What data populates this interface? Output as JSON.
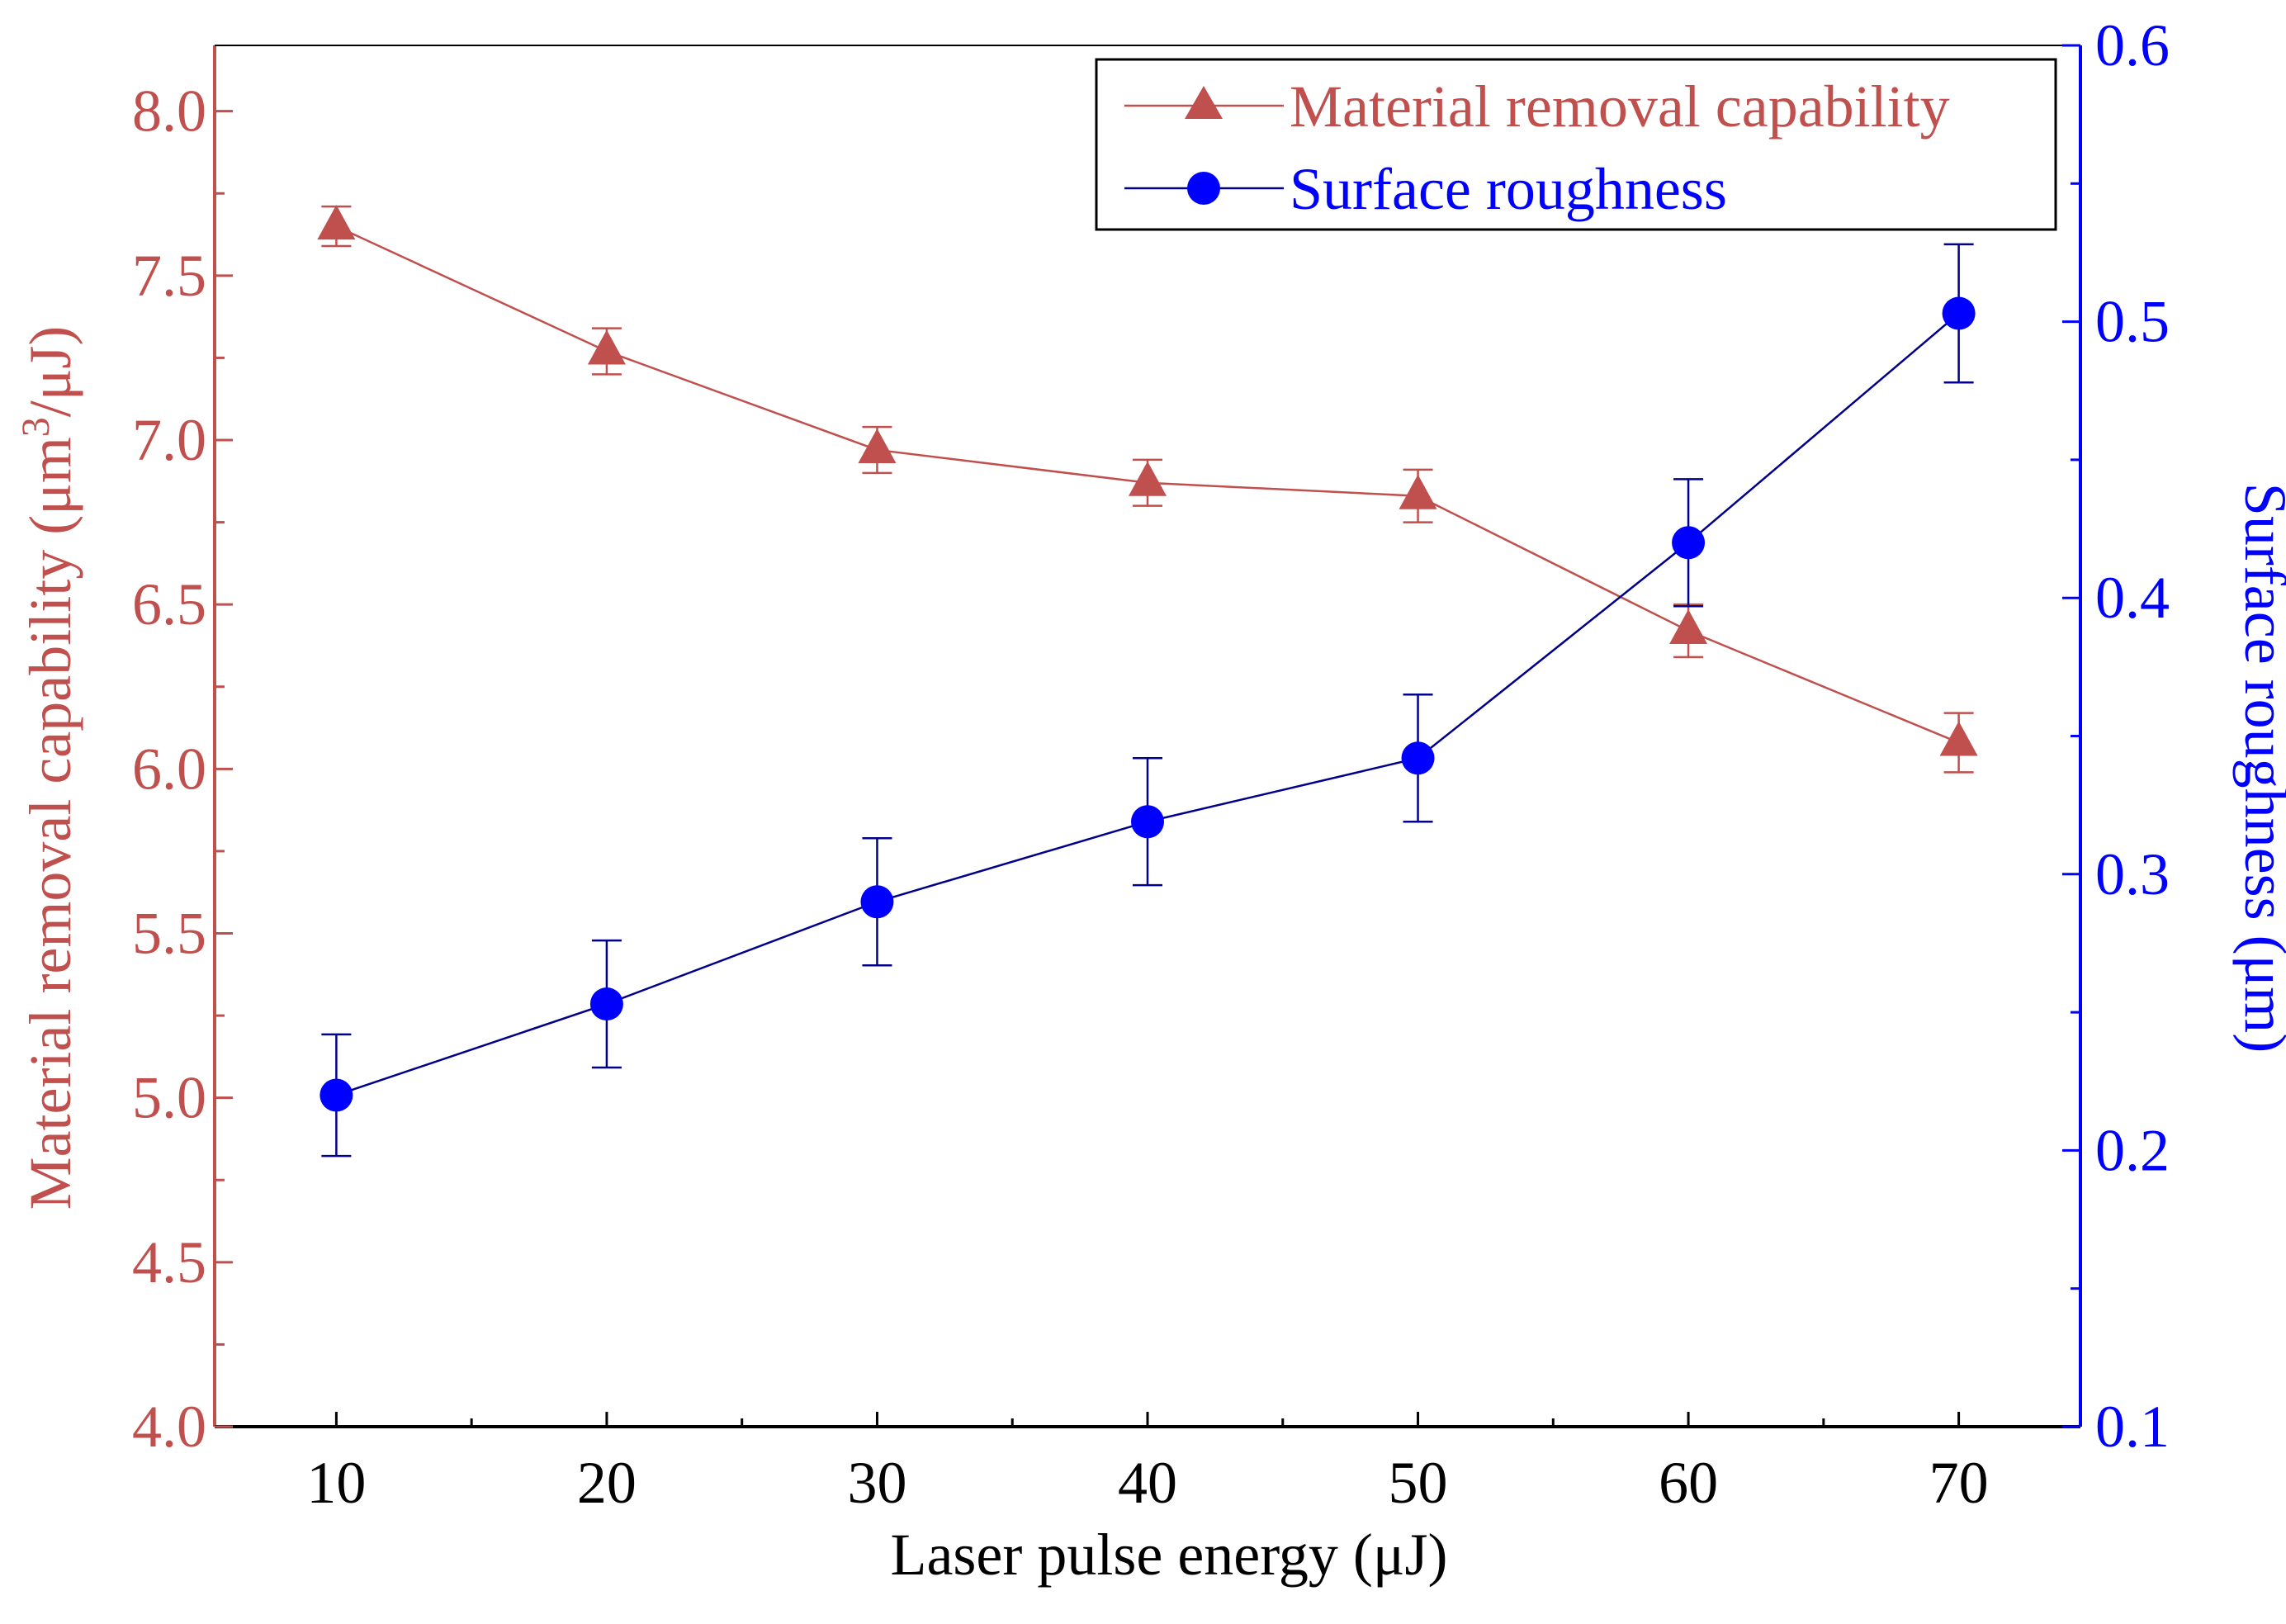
{
  "chart_data": {
    "type": "line",
    "title": "",
    "x": [
      10,
      20,
      30,
      40,
      50,
      60,
      70
    ],
    "xlabel": "Laser pulse energy (μJ)",
    "xlim": [
      5.5,
      74.5
    ],
    "xticks": [
      10,
      20,
      30,
      40,
      50,
      60,
      70
    ],
    "xtick_labels": [
      "10",
      "20",
      "30",
      "40",
      "50",
      "60",
      "70"
    ],
    "ylabel_left": {
      "main": "Material removal capability (μm",
      "sup": "3",
      "tail": "/μJ)"
    },
    "ylabel_right": "Surface roughness (μm)",
    "ylim_left": [
      4.0,
      8.2
    ],
    "ylim_right": [
      0.1,
      0.6
    ],
    "yticks_left": [
      "4.0",
      "4.5",
      "5.0",
      "5.5",
      "6.0",
      "6.5",
      "7.0",
      "7.5",
      "8.0"
    ],
    "yticks_right": [
      "0.1",
      "0.2",
      "0.3",
      "0.4",
      "0.5",
      "0.6"
    ],
    "grid": false,
    "legend_position": "top-right",
    "colors": {
      "mrc": "#c0504d",
      "sr": "#0000ff",
      "sr_line": "#00008b"
    },
    "series": [
      {
        "name": "Material removal capability",
        "axis": "left",
        "marker": "triangle",
        "values": [
          7.65,
          7.27,
          6.97,
          6.87,
          6.83,
          6.42,
          6.08
        ],
        "errors": [
          0.06,
          0.07,
          0.07,
          0.07,
          0.08,
          0.08,
          0.09
        ]
      },
      {
        "name": "Surface roughness",
        "axis": "right",
        "marker": "circle",
        "values": [
          0.22,
          0.253,
          0.29,
          0.319,
          0.342,
          0.42,
          0.503
        ],
        "errors": [
          0.022,
          0.023,
          0.023,
          0.023,
          0.023,
          0.023,
          0.025
        ]
      }
    ]
  }
}
